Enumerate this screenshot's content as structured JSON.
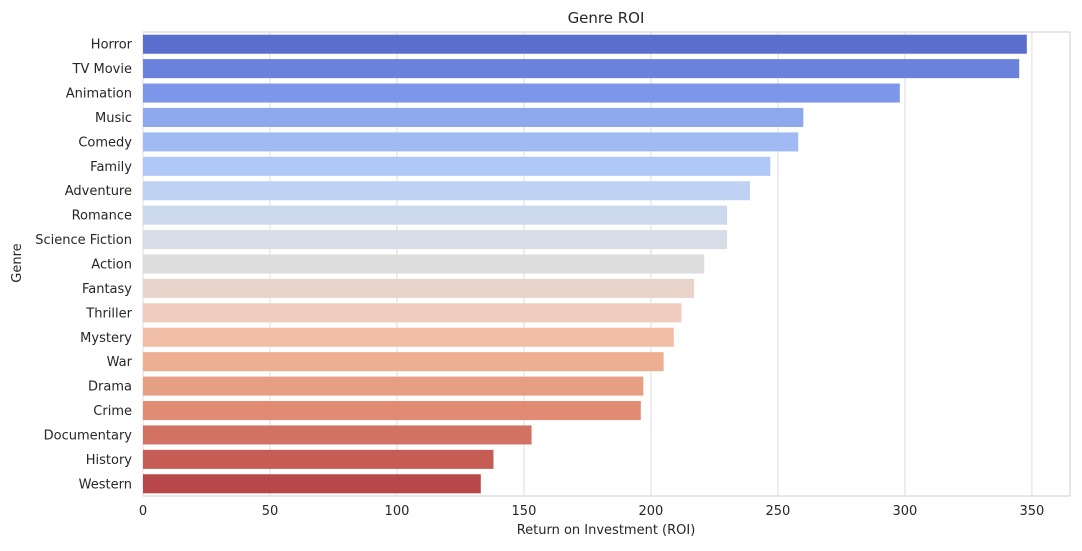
{
  "chart_data": {
    "type": "bar",
    "orientation": "horizontal",
    "title": "Genre ROI",
    "xlabel": "Return on Investment (ROI)",
    "ylabel": "Genre",
    "xlim": [
      0,
      365
    ],
    "xticks": [
      0,
      50,
      100,
      150,
      200,
      250,
      300,
      350
    ],
    "grid": "vertical",
    "categories": [
      "Horror",
      "TV Movie",
      "Animation",
      "Music",
      "Comedy",
      "Family",
      "Adventure",
      "Romance",
      "Science Fiction",
      "Action",
      "Fantasy",
      "Thriller",
      "Mystery",
      "War",
      "Drama",
      "Crime",
      "Documentary",
      "History",
      "Western"
    ],
    "values": [
      348,
      345,
      298,
      260,
      258,
      247,
      239,
      230,
      230,
      221,
      217,
      212,
      209,
      205,
      197,
      196,
      153,
      138,
      133
    ],
    "colors": [
      "#5a6fcd",
      "#6b82dd",
      "#7c97e9",
      "#8ea8ed",
      "#a0baf3",
      "#b0c8f8",
      "#bfd2f4",
      "#ccd8ee",
      "#d7dce6",
      "#dddddd",
      "#e8d4ca",
      "#eecbbd",
      "#f2bfa6",
      "#eeae92",
      "#e79f83",
      "#e08b72",
      "#d27262",
      "#c65c53",
      "#b74847"
    ]
  }
}
